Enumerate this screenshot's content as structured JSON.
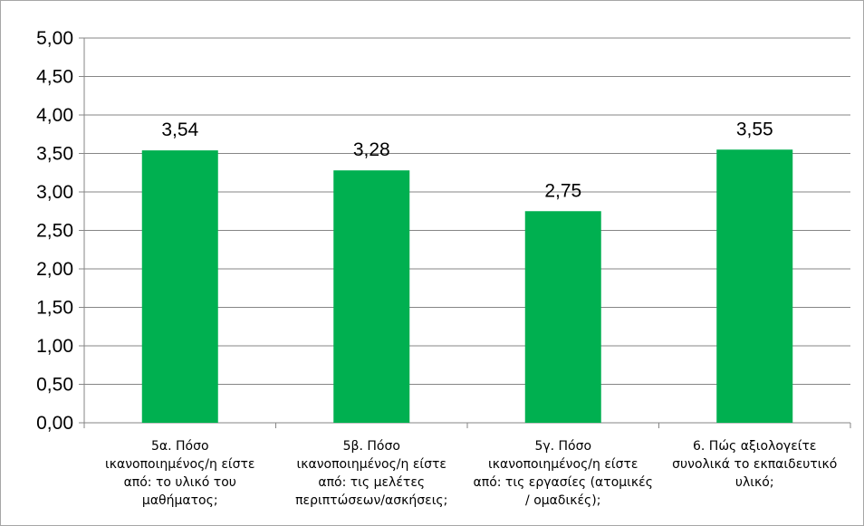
{
  "chart_data": {
    "type": "bar",
    "categories": [
      [
        "5α. Πόσο",
        "ικανοποιημένος/η είστε",
        "από: το υλικό του",
        "μαθήματος;"
      ],
      [
        "5β. Πόσο",
        "ικανοποιημένος/η είστε",
        "από: τις μελέτες",
        "περιπτώσεων/ασκήσεις;"
      ],
      [
        "5γ. Πόσο",
        "ικανοποιημένος/η είστε",
        "από: τις εργασίες (ατομικές",
        "/ ομαδικές);"
      ],
      [
        "6. Πώς αξιολογείτε",
        "συνολικά το εκπαιδευτικό",
        "υλικό;"
      ]
    ],
    "values": [
      3.54,
      3.28,
      2.75,
      3.55
    ],
    "data_labels": [
      "3,54",
      "3,28",
      "2,75",
      "3,55"
    ],
    "y_ticks": [
      "0,00",
      "0,50",
      "1,00",
      "1,50",
      "2,00",
      "2,50",
      "3,00",
      "3,50",
      "4,00",
      "4,50",
      "5,00"
    ],
    "ylim": [
      0,
      5
    ],
    "title": "",
    "xlabel": "",
    "ylabel": "",
    "grid": true,
    "legend": "none",
    "bar_color": "#00b050",
    "grid_color": "#868686"
  }
}
